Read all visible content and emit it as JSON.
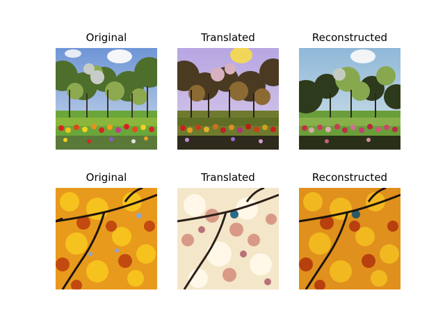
{
  "rows": [
    {
      "panels": [
        {
          "title": "Original",
          "image": "spring orchard with blooming trees, blue sky and red-yellow flower bed"
        },
        {
          "title": "Translated",
          "image": "same orchard scene rendered in autumn colors with purple sky and dark brown foliage"
        },
        {
          "title": "Reconstructed",
          "image": "orchard reconstructed back to spring with green trees and pink flowers"
        }
      ]
    },
    {
      "panels": [
        {
          "title": "Original",
          "image": "autumn branches with orange and yellow leaves against blue sky"
        },
        {
          "title": "Translated",
          "image": "same branches with pale pink-white blossoms"
        },
        {
          "title": "Reconstructed",
          "image": "branches reconstructed with orange autumn leaves"
        }
      ]
    }
  ]
}
